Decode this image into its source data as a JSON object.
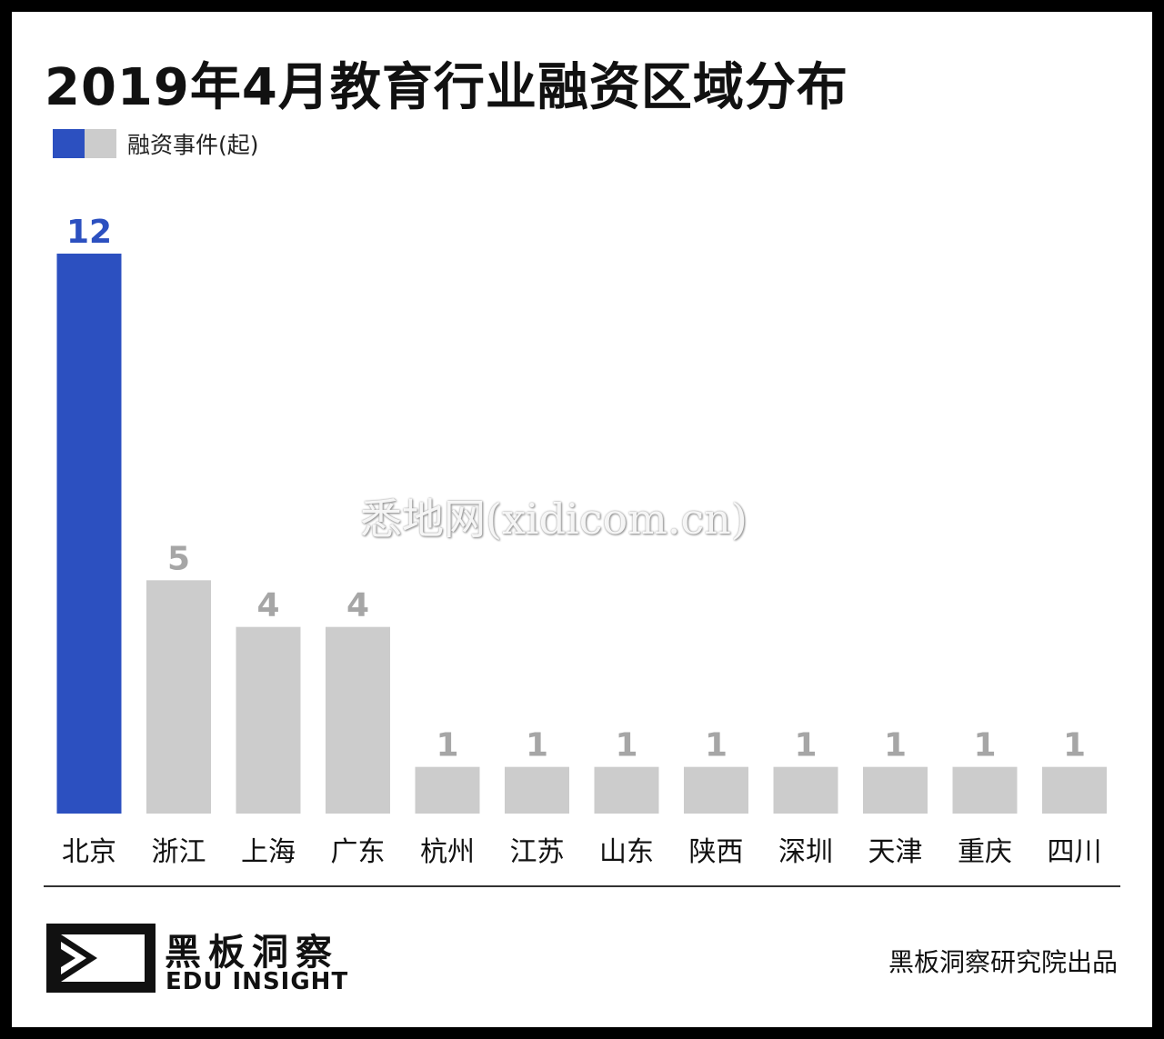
{
  "chart_data": {
    "type": "bar",
    "title": "2019年4月教育行业融资区域分布",
    "categories": [
      "北京",
      "浙江",
      "上海",
      "广东",
      "杭州",
      "江苏",
      "山东",
      "陕西",
      "深圳",
      "天津",
      "重庆",
      "四川"
    ],
    "values": [
      12,
      5,
      4,
      4,
      1,
      1,
      1,
      1,
      1,
      1,
      1,
      1
    ],
    "legend": "融资事件(起)",
    "highlight_index": 0,
    "ylim": [
      0,
      12
    ],
    "grid": false,
    "legend_position": "top-left",
    "colors": {
      "highlight": "#2c50c0",
      "default": "#cccccc",
      "default_label": "#a6a6a6"
    }
  },
  "watermark": "悉地网(xidicom.cn)",
  "brand": {
    "name_cn": "黑板洞察",
    "name_en": "EDU INSIGHT"
  },
  "credit": "黑板洞察研究院出品"
}
